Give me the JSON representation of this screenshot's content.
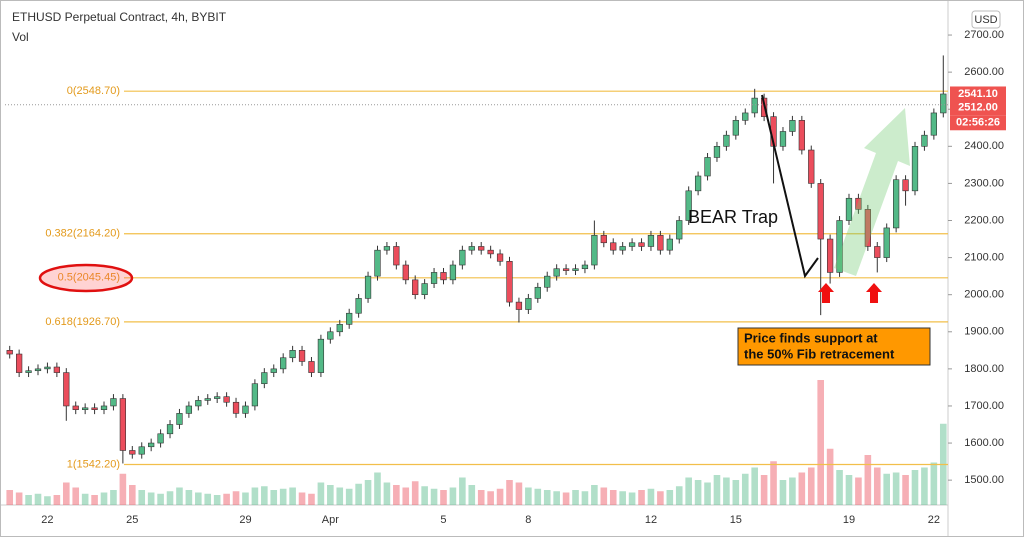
{
  "chart_data": {
    "type": "candlestick",
    "title": "ETHUSD Perpetual Contract, 4h, BYBIT",
    "subtitle": "Vol",
    "currency": "USD",
    "categories": [
      null,
      null,
      null,
      null,
      "22",
      null,
      null,
      null,
      null,
      null,
      null,
      null,
      null,
      "25",
      null,
      null,
      null,
      null,
      null,
      null,
      null,
      null,
      null,
      null,
      null,
      "29",
      null,
      null,
      null,
      null,
      null,
      null,
      null,
      null,
      "Apr",
      null,
      null,
      null,
      null,
      null,
      null,
      null,
      null,
      null,
      null,
      null,
      "5",
      null,
      null,
      null,
      null,
      null,
      null,
      null,
      null,
      "8",
      null,
      null,
      null,
      null,
      null,
      null,
      null,
      null,
      null,
      null,
      null,
      null,
      "12",
      null,
      null,
      null,
      null,
      null,
      null,
      null,
      null,
      "15",
      null,
      null,
      null,
      null,
      null,
      null,
      null,
      null,
      null,
      null,
      null,
      "19",
      null,
      null,
      null,
      null,
      null,
      null,
      null,
      null,
      "22",
      null
    ],
    "open": [
      1850,
      1840,
      1790,
      1795,
      1800,
      1805,
      1790,
      1700,
      1690,
      1695,
      1690,
      1700,
      1720,
      1580,
      1570,
      1590,
      1600,
      1625,
      1650,
      1680,
      1700,
      1715,
      1720,
      1725,
      1710,
      1680,
      1700,
      1760,
      1790,
      1800,
      1830,
      1850,
      1820,
      1790,
      1880,
      1900,
      1920,
      1950,
      1990,
      2050,
      2120,
      2130,
      2080,
      2040,
      2000,
      2030,
      2060,
      2040,
      2080,
      2120,
      2130,
      2120,
      2110,
      2090,
      1980,
      1960,
      1990,
      2020,
      2050,
      2070,
      2065,
      2070,
      2080,
      2160,
      2140,
      2120,
      2130,
      2140,
      2130,
      2160,
      2120,
      2150,
      2200,
      2280,
      2320,
      2370,
      2400,
      2430,
      2470,
      2490,
      2530,
      2480,
      2400,
      2440,
      2470,
      2390,
      2300,
      2150,
      2060,
      2200,
      2260,
      2230,
      2130,
      2100,
      2180,
      2310,
      2280,
      2400,
      2430,
      2490
    ],
    "high": [
      1862,
      1852,
      1807,
      1812,
      1817,
      1817,
      1802,
      1712,
      1707,
      1707,
      1712,
      1732,
      1732,
      1592,
      1602,
      1612,
      1637,
      1662,
      1692,
      1712,
      1727,
      1732,
      1737,
      1737,
      1722,
      1712,
      1772,
      1802,
      1812,
      1842,
      1862,
      1862,
      1832,
      1892,
      1912,
      1932,
      1962,
      2002,
      2062,
      2132,
      2142,
      2142,
      2092,
      2052,
      2042,
      2072,
      2072,
      2092,
      2132,
      2142,
      2142,
      2132,
      2122,
      2102,
      1992,
      2002,
      2032,
      2062,
      2082,
      2082,
      2082,
      2092,
      2200,
      2172,
      2152,
      2142,
      2152,
      2152,
      2172,
      2172,
      2162,
      2212,
      2292,
      2332,
      2382,
      2412,
      2442,
      2482,
      2502,
      2555,
      2542,
      2492,
      2452,
      2482,
      2482,
      2402,
      2312,
      2162,
      2212,
      2272,
      2272,
      2242,
      2142,
      2192,
      2322,
      2322,
      2412,
      2442,
      2502,
      2645
    ],
    "low": [
      1828,
      1778,
      1778,
      1783,
      1788,
      1778,
      1660,
      1678,
      1678,
      1678,
      1678,
      1688,
      1545,
      1558,
      1558,
      1578,
      1588,
      1613,
      1638,
      1668,
      1688,
      1703,
      1708,
      1698,
      1668,
      1668,
      1688,
      1748,
      1778,
      1788,
      1818,
      1808,
      1778,
      1778,
      1868,
      1888,
      1908,
      1938,
      1978,
      2038,
      2108,
      2068,
      2028,
      1988,
      1988,
      2018,
      2028,
      2028,
      2068,
      2108,
      2108,
      2098,
      2078,
      1968,
      1925,
      1948,
      1978,
      2008,
      2038,
      2053,
      2053,
      2058,
      2068,
      2128,
      2108,
      2108,
      2118,
      2118,
      2118,
      2108,
      2108,
      2138,
      2188,
      2268,
      2308,
      2358,
      2388,
      2418,
      2458,
      2478,
      2468,
      2300,
      2388,
      2428,
      2378,
      2288,
      1945,
      2030,
      2048,
      2188,
      2218,
      2118,
      2060,
      2088,
      2168,
      2240,
      2268,
      2388,
      2418,
      2478
    ],
    "close": [
      1840,
      1790,
      1795,
      1800,
      1805,
      1790,
      1700,
      1690,
      1695,
      1690,
      1700,
      1720,
      1580,
      1570,
      1590,
      1600,
      1625,
      1650,
      1680,
      1700,
      1715,
      1720,
      1725,
      1710,
      1680,
      1700,
      1760,
      1790,
      1800,
      1830,
      1850,
      1820,
      1790,
      1880,
      1900,
      1920,
      1950,
      1990,
      2050,
      2120,
      2130,
      2080,
      2040,
      2000,
      2030,
      2060,
      2040,
      2080,
      2120,
      2130,
      2120,
      2110,
      2090,
      1980,
      1960,
      1990,
      2020,
      2050,
      2070,
      2065,
      2070,
      2080,
      2160,
      2140,
      2120,
      2130,
      2140,
      2130,
      2160,
      2120,
      2150,
      2200,
      2280,
      2320,
      2370,
      2400,
      2430,
      2470,
      2490,
      2530,
      2480,
      2400,
      2440,
      2470,
      2390,
      2300,
      2150,
      2060,
      2200,
      2260,
      2230,
      2130,
      2100,
      2180,
      2310,
      2280,
      2400,
      2430,
      2490,
      2541.1
    ],
    "volume": [
      12,
      10,
      8,
      9,
      7,
      8,
      18,
      14,
      9,
      8,
      10,
      12,
      25,
      16,
      12,
      10,
      9,
      11,
      14,
      12,
      10,
      9,
      8,
      9,
      11,
      10,
      14,
      15,
      12,
      13,
      14,
      10,
      9,
      18,
      16,
      14,
      13,
      17,
      20,
      26,
      18,
      16,
      14,
      19,
      15,
      13,
      12,
      14,
      22,
      16,
      12,
      11,
      13,
      20,
      18,
      14,
      13,
      12,
      11,
      10,
      12,
      11,
      16,
      14,
      12,
      11,
      10,
      12,
      13,
      11,
      12,
      15,
      22,
      20,
      18,
      24,
      22,
      20,
      25,
      30,
      24,
      35,
      20,
      22,
      26,
      30,
      100,
      45,
      28,
      24,
      22,
      40,
      30,
      25,
      26,
      24,
      28,
      30,
      34,
      65
    ],
    "up_color": "#53b987",
    "down_color": "#eb4d5c",
    "ylim": [
      1433,
      2781
    ],
    "vol_ylim": [
      0,
      400
    ],
    "yticks": [
      {
        "value": 1500,
        "label": "1500.00"
      },
      {
        "value": 1600,
        "label": "1600.00"
      },
      {
        "value": 1700,
        "label": "1700.00"
      },
      {
        "value": 1800,
        "label": "1800.00"
      },
      {
        "value": 1900,
        "label": "1900.00"
      },
      {
        "value": 2000,
        "label": "2000.00"
      },
      {
        "value": 2100,
        "label": "2100.00"
      },
      {
        "value": 2200,
        "label": "2200.00"
      },
      {
        "value": 2300,
        "label": "2300.00"
      },
      {
        "value": 2400,
        "label": "2400.00"
      },
      {
        "value": 2500,
        "label": "2500.00"
      },
      {
        "value": 2600,
        "label": "2600.00"
      },
      {
        "value": 2700,
        "label": "2700.00"
      }
    ],
    "fib_levels": [
      {
        "ratio": 0,
        "price": 2548.7,
        "label": "0(2548.70)"
      },
      {
        "ratio": 0.382,
        "price": 2164.2,
        "label": "0.382(2164.20)"
      },
      {
        "ratio": 0.5,
        "price": 2045.45,
        "label": "0.5(2045.45)"
      },
      {
        "ratio": 0.618,
        "price": 1926.7,
        "label": "0.618(1926.70)"
      },
      {
        "ratio": 1,
        "price": 1542.2,
        "label": "1(1542.20)"
      }
    ],
    "price_tags": [
      {
        "value": 2541.1,
        "label": "2541.10"
      },
      {
        "value": 2512,
        "label": "2512.00"
      }
    ],
    "countdown": "02:56:26",
    "annotations": {
      "bear_trap": "BEAR Trap",
      "support_note": [
        "Price finds support at",
        "the 50% Fib retracement"
      ]
    }
  }
}
